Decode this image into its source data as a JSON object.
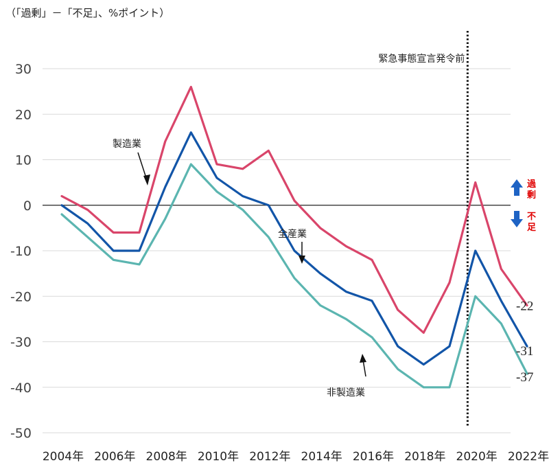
{
  "unit_label": "（「過剰」－「不足」、%ポイント）",
  "chart_data": {
    "type": "line",
    "x": [
      2004,
      2005,
      2006,
      2007,
      2008,
      2009,
      2010,
      2011,
      2012,
      2013,
      2014,
      2015,
      2016,
      2017,
      2018,
      2019,
      2020,
      2021,
      2022
    ],
    "x_ticks": [
      2004,
      2006,
      2008,
      2010,
      2012,
      2014,
      2016,
      2018,
      2020,
      2022
    ],
    "x_tick_labels": [
      "2004年",
      "2006年",
      "2008年",
      "2010年",
      "2012年",
      "2014年",
      "2016年",
      "2018年",
      "2020年",
      "2022年"
    ],
    "ylim": [
      -50,
      30
    ],
    "y_ticks": [
      30,
      20,
      10,
      0,
      -10,
      -20,
      -30,
      -40,
      -50
    ],
    "grid": true,
    "series": [
      {
        "name": "製造業",
        "color": "#d9456a",
        "values": [
          2,
          -1,
          -6,
          -6,
          14,
          26,
          9,
          8,
          12,
          1,
          -5,
          -9,
          -12,
          -23,
          -28,
          -17,
          5,
          -14,
          -22
        ],
        "end_label": "-22"
      },
      {
        "name": "全産業",
        "color": "#1255a8",
        "values": [
          0,
          -4,
          -10,
          -10,
          4,
          16,
          6,
          2,
          0,
          -10,
          -15,
          -19,
          -21,
          -31,
          -35,
          -31,
          -10,
          -21,
          -31
        ],
        "end_label": "-31"
      },
      {
        "name": "非製造業",
        "color": "#5bb5b0",
        "values": [
          -2,
          -7,
          -12,
          -13,
          -3,
          9,
          3,
          -1,
          -7,
          -16,
          -22,
          -25,
          -29,
          -36,
          -40,
          -40,
          -20,
          -26,
          -37
        ],
        "end_label": "-37"
      }
    ],
    "vline": {
      "x": 2019.7,
      "label": "緊急事態宣言発令前"
    },
    "annotations": {
      "manufacturing": "製造業",
      "all_industries": "全産業",
      "non_manufacturing": "非製造業"
    },
    "side_legend": {
      "up_label": [
        "過",
        "剰"
      ],
      "down_label": [
        "不",
        "足"
      ],
      "up_color": "#1e63c4",
      "down_color": "#1e63c4",
      "label_color": "#e00000"
    }
  }
}
